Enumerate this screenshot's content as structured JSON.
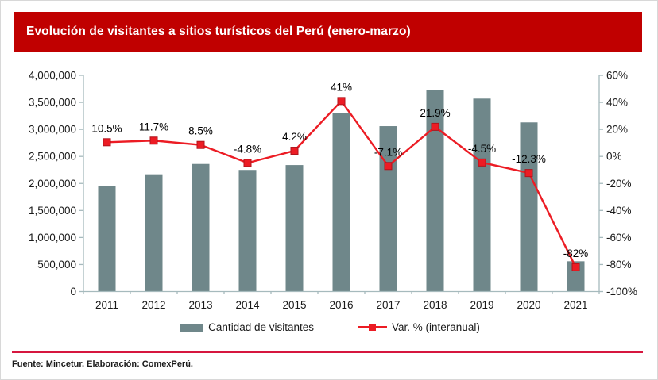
{
  "title": "Evolución de visitantes a sitios turísticos del Perú (enero-marzo)",
  "footer": {
    "source": "Fuente: Mincetur. Elaboración: ComexPerú."
  },
  "legend": [
    {
      "label": "Cantidad de visitantes"
    },
    {
      "label": "Var. % (interanual)"
    }
  ],
  "colors": {
    "banner": "#C00000",
    "bar": "#6F878A",
    "line": "#EC1C24",
    "marker_edge": "#B0131B",
    "axis": "#A6BABD",
    "divider": "#D6173F",
    "text": "#1A1A1A"
  },
  "chart_data": {
    "type": "bar",
    "subtype": "combo-bar-line",
    "title": "Evolución de visitantes a sitios turísticos del Perú (enero-marzo)",
    "categories": [
      "2011",
      "2012",
      "2013",
      "2014",
      "2015",
      "2016",
      "2017",
      "2018",
      "2019",
      "2020",
      "2021"
    ],
    "series": [
      {
        "name": "Cantidad de visitantes",
        "type": "bar",
        "axis": "left",
        "values": [
          1950000,
          2170000,
          2360000,
          2250000,
          2340000,
          3300000,
          3060000,
          3730000,
          3570000,
          3130000,
          560000
        ]
      },
      {
        "name": "Var. % (interanual)",
        "type": "line",
        "axis": "right",
        "values": [
          10.5,
          11.7,
          8.5,
          -4.8,
          4.2,
          41,
          -7.1,
          21.9,
          -4.5,
          -12.3,
          -82
        ],
        "labels": [
          "10.5%",
          "11.7%",
          "8.5%",
          "-4.8%",
          "4.2%",
          "41%",
          "-7.1%",
          "21.9%",
          "-4.5%",
          "-12.3%",
          "-82%"
        ]
      }
    ],
    "left_axis": {
      "min": 0,
      "max": 4000000,
      "tick_labels": [
        "4,000,000",
        "3,500,000",
        "3,000,000",
        "2,500,000",
        "2,000,000",
        "1,500,000",
        "1,000,000",
        "500,000",
        "0"
      ]
    },
    "right_axis": {
      "min": -100,
      "max": 60,
      "tick_labels": [
        "60%",
        "40%",
        "20%",
        "0%",
        "-20%",
        "-40%",
        "-60%",
        "-80%",
        "-100%"
      ]
    },
    "legend_position": "bottom",
    "grid": false
  }
}
